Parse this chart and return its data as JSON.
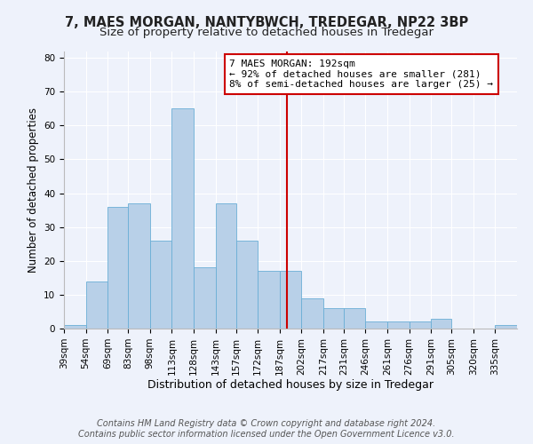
{
  "title": "7, MAES MORGAN, NANTYBWCH, TREDEGAR, NP22 3BP",
  "subtitle": "Size of property relative to detached houses in Tredegar",
  "xlabel": "Distribution of detached houses by size in Tredegar",
  "ylabel": "Number of detached properties",
  "bin_labels": [
    "39sqm",
    "54sqm",
    "69sqm",
    "83sqm",
    "98sqm",
    "113sqm",
    "128sqm",
    "143sqm",
    "157sqm",
    "172sqm",
    "187sqm",
    "202sqm",
    "217sqm",
    "231sqm",
    "246sqm",
    "261sqm",
    "276sqm",
    "291sqm",
    "305sqm",
    "320sqm",
    "335sqm"
  ],
  "bin_edges": [
    39,
    54,
    69,
    83,
    98,
    113,
    128,
    143,
    157,
    172,
    187,
    202,
    217,
    231,
    246,
    261,
    276,
    291,
    305,
    320,
    335,
    350
  ],
  "bar_heights": [
    1,
    14,
    36,
    37,
    26,
    65,
    18,
    37,
    26,
    17,
    17,
    9,
    6,
    6,
    2,
    2,
    2,
    3,
    0,
    0,
    1
  ],
  "bar_color": "#b8d0e8",
  "bar_edge_color": "#6aaed6",
  "vline_x": 192,
  "vline_color": "#cc0000",
  "annotation_text": "7 MAES MORGAN: 192sqm\n← 92% of detached houses are smaller (281)\n8% of semi-detached houses are larger (25) →",
  "annotation_box_facecolor": "#ffffff",
  "annotation_box_edgecolor": "#cc0000",
  "ylim": [
    0,
    82
  ],
  "yticks": [
    0,
    10,
    20,
    30,
    40,
    50,
    60,
    70,
    80
  ],
  "background_color": "#eef2fb",
  "grid_color": "#ffffff",
  "footer_line1": "Contains HM Land Registry data © Crown copyright and database right 2024.",
  "footer_line2": "Contains public sector information licensed under the Open Government Licence v3.0.",
  "title_fontsize": 10.5,
  "subtitle_fontsize": 9.5,
  "xlabel_fontsize": 9,
  "ylabel_fontsize": 8.5,
  "tick_fontsize": 7.5,
  "annotation_fontsize": 8,
  "footer_fontsize": 7
}
